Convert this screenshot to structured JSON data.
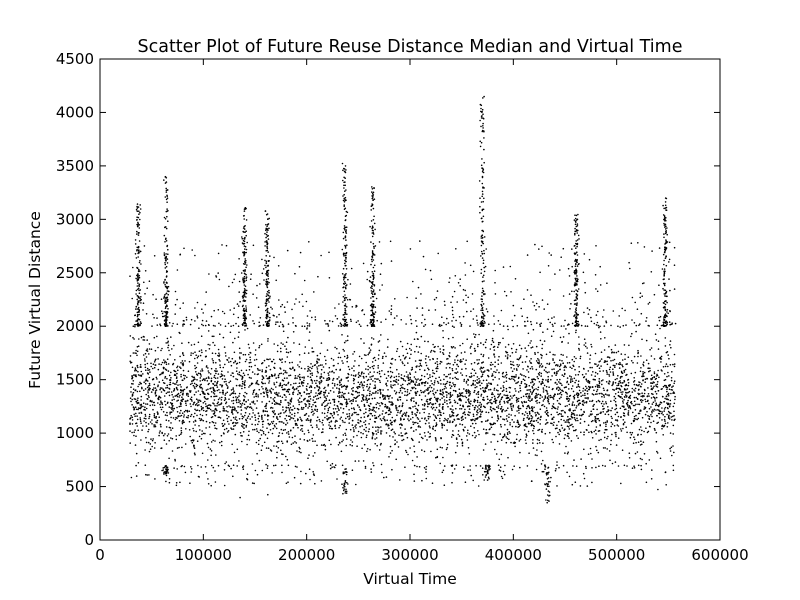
{
  "chart_data": {
    "type": "scatter",
    "title": "Scatter Plot of Future Reuse Distance Median and Virtual Time",
    "xlabel": "Virtual Time",
    "ylabel": "Future Virtual Distance",
    "xlim": [
      0,
      600000
    ],
    "ylim": [
      0,
      4500
    ],
    "xticks": [
      0,
      100000,
      200000,
      300000,
      400000,
      500000,
      600000
    ],
    "yticks": [
      0,
      500,
      1000,
      1500,
      2000,
      2500,
      3000,
      3500,
      4000,
      4500
    ],
    "grid": false,
    "legend": "none",
    "point_color": "#000000",
    "x_extent": [
      29000,
      557000
    ],
    "typical_y_range": [
      700,
      2000
    ],
    "spikes": [
      {
        "x": 37000,
        "y_peak": 3150
      },
      {
        "x": 64000,
        "y_peak": 3400
      },
      {
        "x": 140000,
        "y_peak": 3120
      },
      {
        "x": 162000,
        "y_peak": 3080
      },
      {
        "x": 237000,
        "y_peak": 3540
      },
      {
        "x": 264000,
        "y_peak": 3320
      },
      {
        "x": 370000,
        "y_peak": 4160
      },
      {
        "x": 461000,
        "y_peak": 3050
      },
      {
        "x": 547000,
        "y_peak": 3200
      }
    ],
    "dips": [
      {
        "x": 64000,
        "y_low": 600
      },
      {
        "x": 237000,
        "y_low": 430
      },
      {
        "x": 375000,
        "y_low": 560
      },
      {
        "x": 433000,
        "y_low": 340
      }
    ]
  }
}
